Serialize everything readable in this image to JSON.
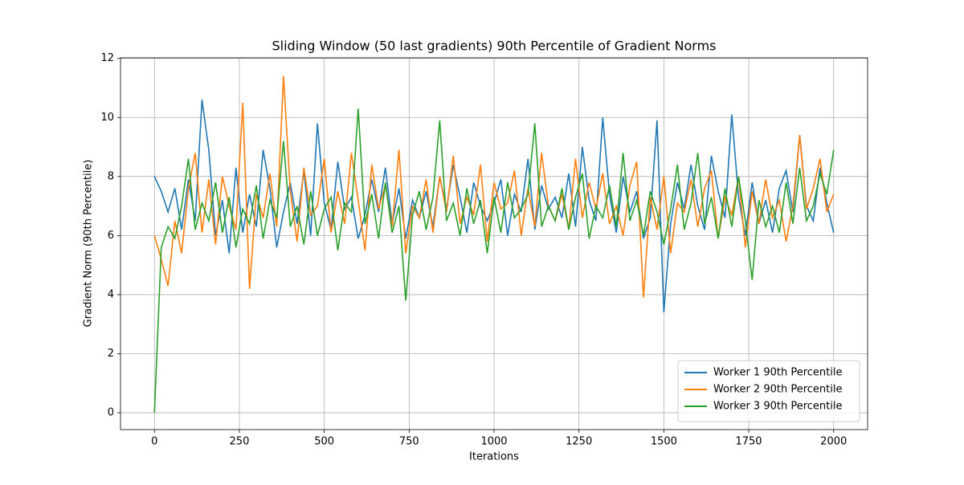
{
  "chart_data": {
    "type": "line",
    "title": "Sliding Window (50 last gradients) 90th Percentile of Gradient Norms",
    "xlabel": "Iterations",
    "ylabel": "Gradient Norm (90th Percentile)",
    "x": [
      0,
      20,
      40,
      60,
      80,
      100,
      120,
      140,
      160,
      180,
      200,
      220,
      240,
      260,
      280,
      300,
      320,
      340,
      360,
      380,
      400,
      420,
      440,
      460,
      480,
      500,
      520,
      540,
      560,
      580,
      600,
      620,
      640,
      660,
      680,
      700,
      720,
      740,
      760,
      780,
      800,
      820,
      840,
      860,
      880,
      900,
      920,
      940,
      960,
      980,
      1000,
      1020,
      1040,
      1060,
      1080,
      1100,
      1120,
      1140,
      1160,
      1180,
      1200,
      1220,
      1240,
      1260,
      1280,
      1300,
      1320,
      1340,
      1360,
      1380,
      1400,
      1420,
      1440,
      1460,
      1480,
      1500,
      1520,
      1540,
      1560,
      1580,
      1600,
      1620,
      1640,
      1660,
      1680,
      1700,
      1720,
      1740,
      1760,
      1780,
      1800,
      1820,
      1840,
      1860,
      1880,
      1900,
      1920,
      1940,
      1960,
      1980,
      2000
    ],
    "series": [
      {
        "name": "Worker 1 90th Percentile",
        "color": "#1f77b4",
        "values": [
          8.0,
          7.5,
          6.8,
          7.6,
          6.2,
          7.9,
          6.5,
          10.6,
          8.9,
          6.0,
          7.2,
          5.4,
          8.3,
          6.1,
          7.4,
          6.3,
          8.9,
          7.6,
          5.6,
          6.8,
          7.8,
          6.4,
          8.2,
          6.0,
          9.8,
          7.1,
          6.2,
          8.5,
          6.9,
          7.3,
          5.9,
          6.7,
          7.9,
          6.8,
          8.3,
          6.4,
          7.6,
          5.9,
          7.2,
          6.6,
          7.5,
          6.3,
          8.0,
          6.9,
          8.4,
          7.3,
          6.1,
          7.8,
          7.0,
          6.5,
          7.1,
          7.9,
          6.0,
          7.4,
          6.8,
          8.6,
          6.2,
          7.7,
          6.9,
          7.3,
          6.6,
          8.1,
          6.3,
          9.0,
          7.2,
          6.5,
          10.0,
          7.4,
          6.1,
          8.0,
          6.8,
          7.5,
          5.9,
          6.6,
          9.9,
          3.4,
          6.4,
          7.8,
          6.9,
          8.4,
          7.0,
          6.2,
          8.7,
          7.5,
          6.6,
          10.1,
          7.3,
          6.0,
          7.8,
          6.4,
          7.2,
          6.1,
          7.6,
          8.2,
          6.8,
          9.4,
          7.0,
          6.5,
          8.3,
          7.1,
          6.1
        ]
      },
      {
        "name": "Worker 2 90th Percentile",
        "color": "#ff7f0e",
        "values": [
          6.0,
          5.2,
          4.3,
          6.5,
          5.4,
          7.6,
          8.8,
          6.1,
          7.9,
          5.7,
          8.0,
          7.0,
          6.2,
          10.5,
          4.2,
          7.4,
          6.6,
          8.1,
          6.3,
          11.4,
          7.5,
          5.8,
          8.3,
          6.7,
          7.0,
          8.6,
          6.1,
          7.5,
          6.4,
          8.8,
          7.2,
          5.5,
          8.4,
          6.9,
          7.7,
          6.3,
          8.9,
          5.4,
          7.0,
          6.6,
          7.9,
          6.1,
          8.0,
          6.8,
          8.7,
          6.4,
          7.3,
          6.7,
          8.4,
          5.8,
          7.8,
          6.9,
          7.1,
          8.2,
          6.0,
          7.6,
          6.3,
          8.8,
          7.0,
          6.5,
          7.4,
          6.2,
          8.6,
          6.6,
          7.8,
          6.9,
          8.1,
          6.4,
          7.0,
          6.0,
          7.7,
          8.5,
          3.9,
          7.3,
          6.2,
          8.0,
          5.4,
          7.1,
          6.8,
          7.9,
          6.3,
          7.6,
          8.2,
          5.9,
          7.3,
          6.7,
          8.0,
          5.6,
          7.5,
          6.4,
          7.9,
          6.6,
          7.2,
          5.8,
          7.0,
          9.4,
          6.9,
          7.6,
          8.6,
          6.8,
          7.4
        ]
      },
      {
        "name": "Worker 3 90th Percentile",
        "color": "#2ca02c",
        "values": [
          0.0,
          5.6,
          6.3,
          5.9,
          7.0,
          8.6,
          6.2,
          7.1,
          6.5,
          7.8,
          6.1,
          7.3,
          5.6,
          6.9,
          6.4,
          7.7,
          5.9,
          7.2,
          6.6,
          9.2,
          6.3,
          7.0,
          5.7,
          7.5,
          6.0,
          6.9,
          7.3,
          5.5,
          7.1,
          6.8,
          10.3,
          6.4,
          7.4,
          5.9,
          7.8,
          6.1,
          7.0,
          3.8,
          6.7,
          7.5,
          6.2,
          7.3,
          9.9,
          6.5,
          7.1,
          6.0,
          7.6,
          6.4,
          7.2,
          5.4,
          7.3,
          6.1,
          7.8,
          6.6,
          6.9,
          7.4,
          9.8,
          6.3,
          7.0,
          6.5,
          7.6,
          6.2,
          7.3,
          8.1,
          5.9,
          7.0,
          6.6,
          7.7,
          6.3,
          8.8,
          6.5,
          7.2,
          6.0,
          7.5,
          6.8,
          5.7,
          6.9,
          8.4,
          6.2,
          7.1,
          8.8,
          6.4,
          7.3,
          5.9,
          7.6,
          6.3,
          8.0,
          6.5,
          4.5,
          7.2,
          6.3,
          7.0,
          6.1,
          7.8,
          6.4,
          8.3,
          6.5,
          7.0,
          8.1,
          7.4,
          8.9
        ]
      }
    ],
    "xlim": [
      -100,
      2100
    ],
    "ylim": [
      -0.57,
      12.02
    ],
    "xticks": [
      0,
      250,
      500,
      750,
      1000,
      1250,
      1500,
      1750,
      2000
    ],
    "yticks": [
      0,
      2,
      4,
      6,
      8,
      10,
      12
    ],
    "grid": true,
    "legend": "lower right"
  }
}
